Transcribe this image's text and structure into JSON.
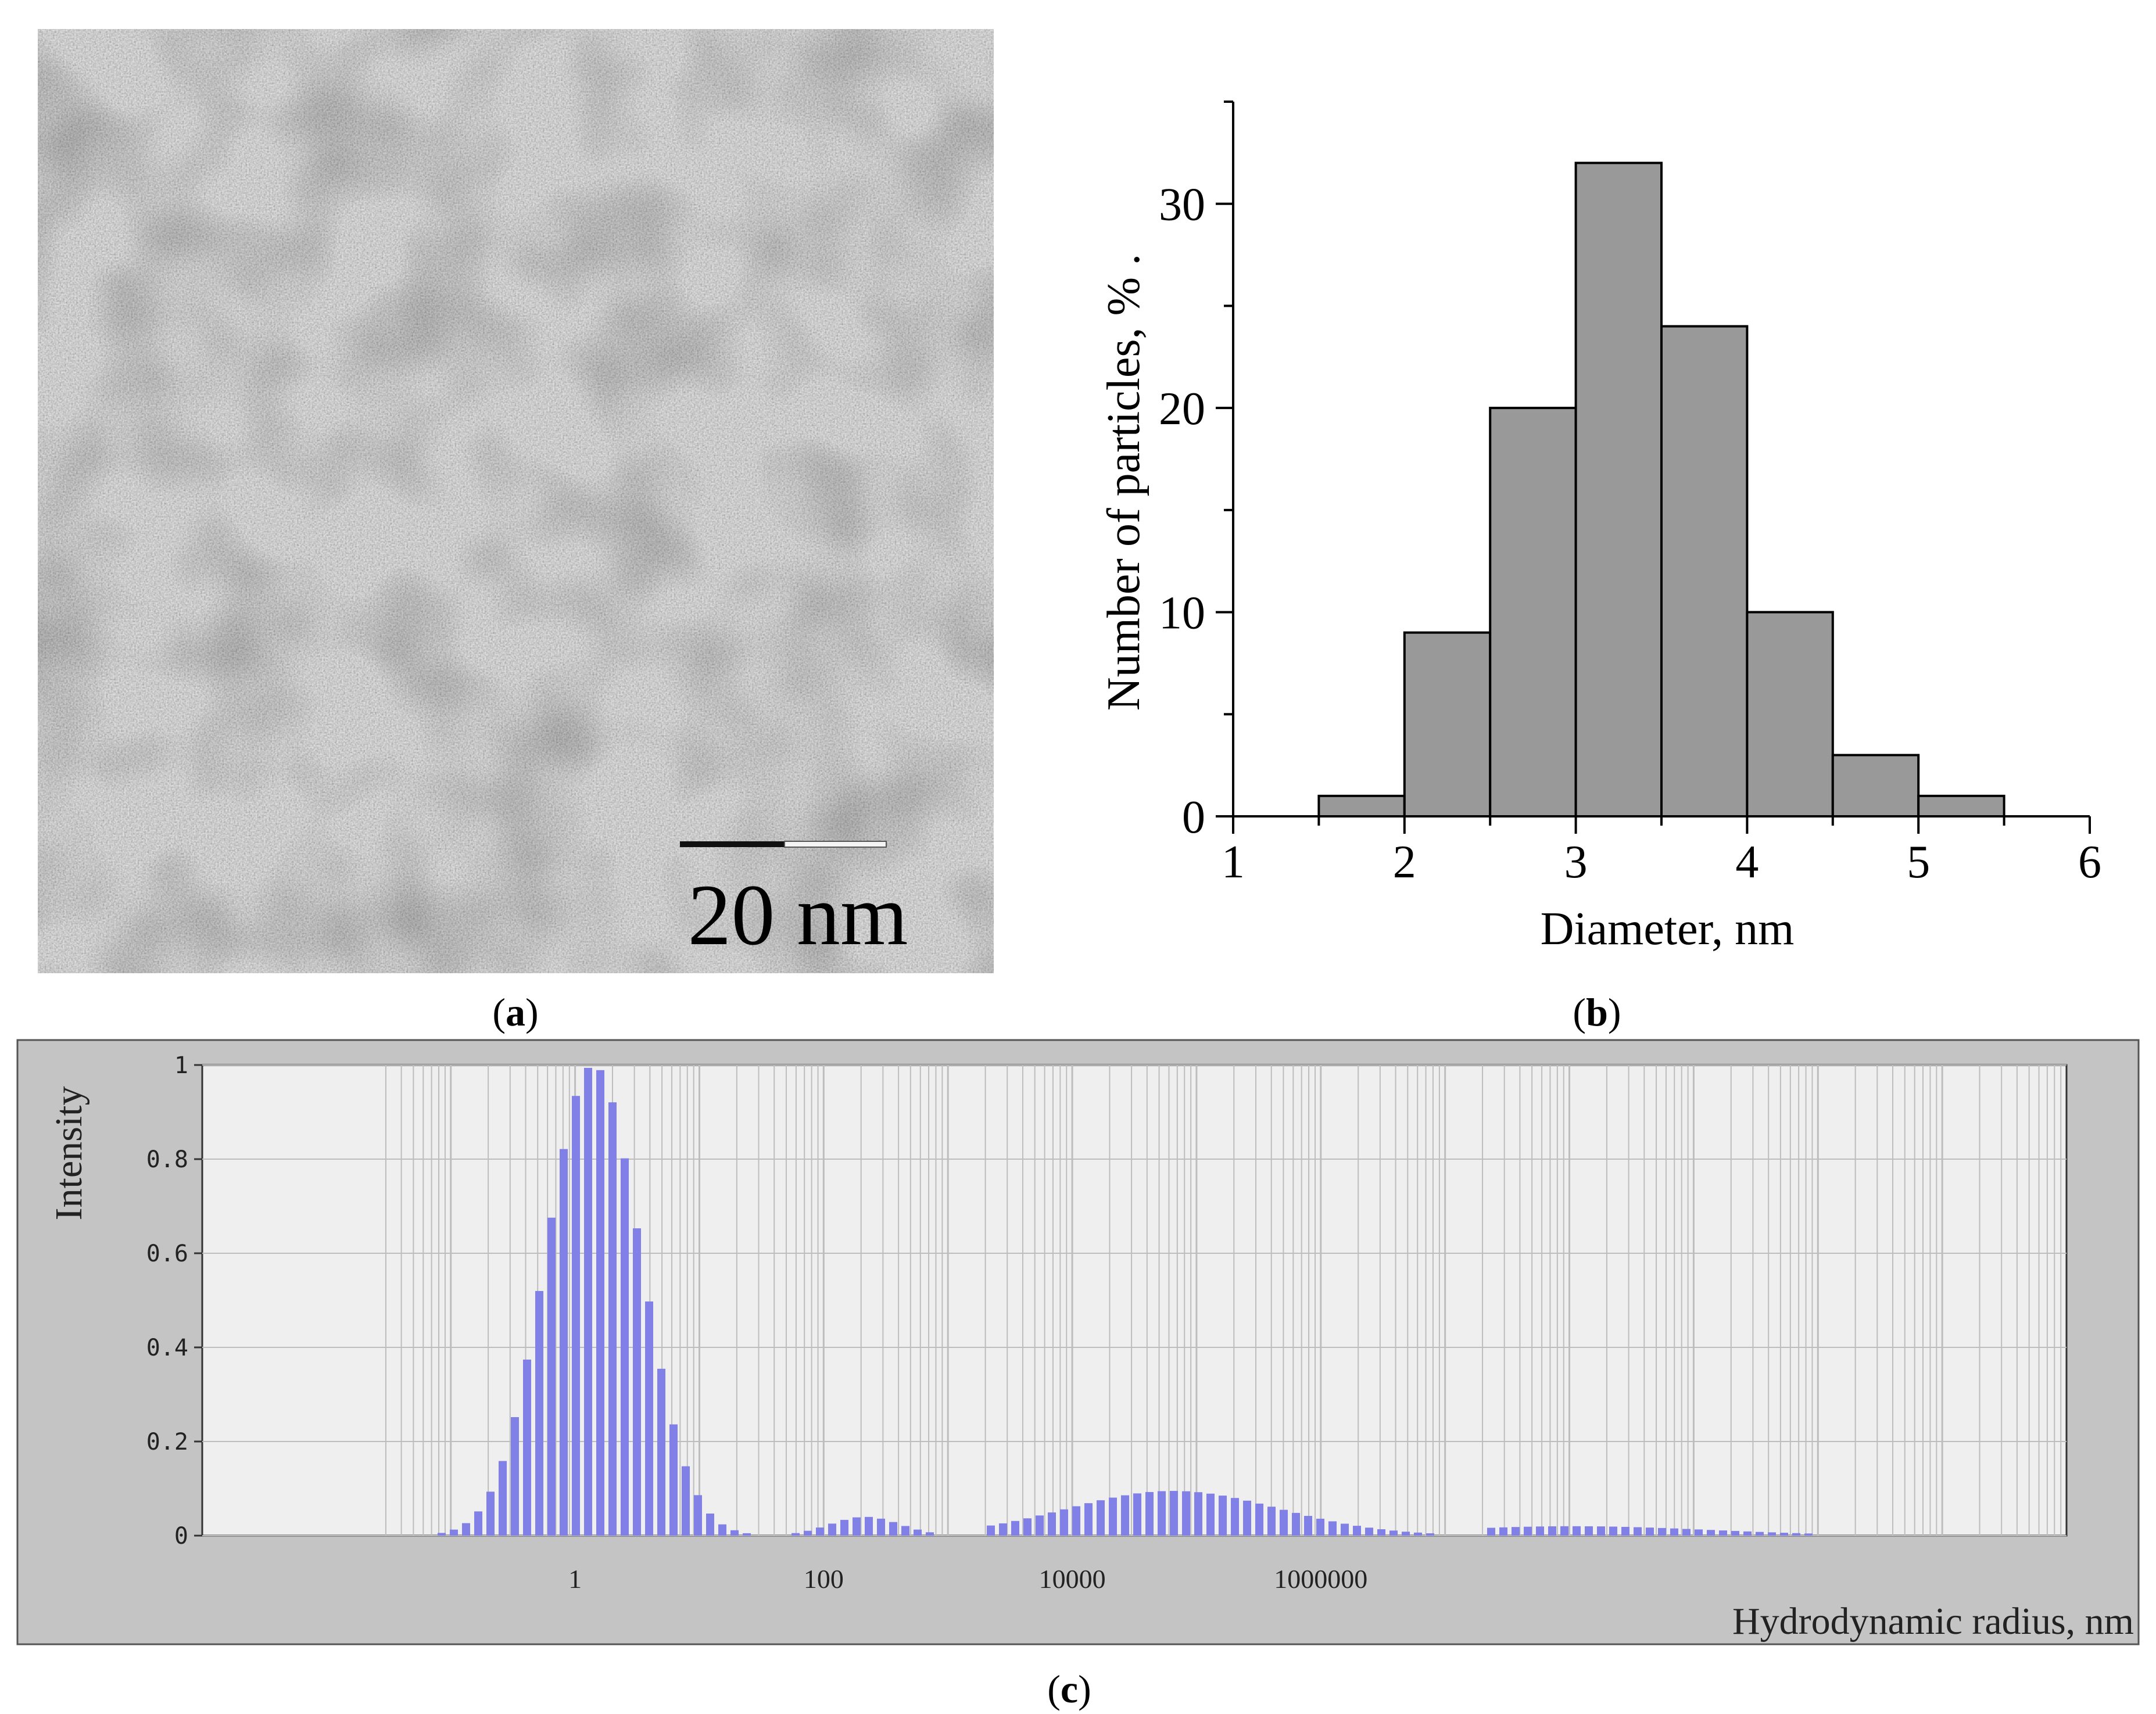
{
  "panels": {
    "a": {
      "caption_letter": "a",
      "scale_bar_label": "20 nm"
    },
    "b": {
      "caption_letter": "b"
    },
    "c": {
      "caption_letter": "c"
    }
  },
  "colors": {
    "hist_bar": "#999999",
    "dls_bar": "#8080e6",
    "dls_bg": "#efefef",
    "dls_frame": "#c4c4c4",
    "grid": "#bdbdbd"
  },
  "chart_data": [
    {
      "id": "b",
      "type": "bar",
      "title": "",
      "xlabel": "Diameter, nm",
      "ylabel": "Number of particles, % .",
      "xlim": [
        1,
        6
      ],
      "ylim": [
        0,
        35
      ],
      "xticks": [
        "1",
        "2",
        "3",
        "4",
        "5",
        "6"
      ],
      "yticks": [
        "0",
        "10",
        "20",
        "30"
      ],
      "bin_width": 0.5,
      "bins": [
        {
          "x0": 1.5,
          "x1": 2.0,
          "value": 1
        },
        {
          "x0": 2.0,
          "x1": 2.5,
          "value": 9
        },
        {
          "x0": 2.5,
          "x1": 3.0,
          "value": 20
        },
        {
          "x0": 3.0,
          "x1": 3.5,
          "value": 32
        },
        {
          "x0": 3.5,
          "x1": 4.0,
          "value": 24
        },
        {
          "x0": 4.0,
          "x1": 4.5,
          "value": 10
        },
        {
          "x0": 4.5,
          "x1": 5.0,
          "value": 3
        },
        {
          "x0": 5.0,
          "x1": 5.5,
          "value": 1
        }
      ],
      "legend": "none",
      "grid": false
    },
    {
      "id": "c",
      "type": "bar",
      "title": "",
      "xlabel": "Hydrodynamic radius, nm",
      "ylabel": "Intensity",
      "xscale": "log",
      "xlim": [
        0.001,
        1000000000000
      ],
      "ylim": [
        0,
        1
      ],
      "xticks": [
        "1",
        "100",
        "10000",
        "1000000"
      ],
      "yticks": [
        "0",
        "0.2",
        "0.4",
        "0.6",
        "0.8",
        "1"
      ],
      "grid": true,
      "peaks": [
        {
          "center": 1.3,
          "height": 1.0,
          "log_sigma": 0.38,
          "from": 0.01,
          "to": 300
        },
        {
          "center": 200,
          "height": 0.04,
          "log_sigma": 0.28,
          "from": 30,
          "to": 2000
        },
        {
          "center": 60000,
          "height": 0.095,
          "log_sigma": 0.85,
          "from": 2000,
          "to": 20000000
        },
        {
          "center": 100000000,
          "height": 0.02,
          "log_sigma": 1.1,
          "from": 20000000,
          "to": 100000000000
        }
      ],
      "legend": "none"
    }
  ]
}
